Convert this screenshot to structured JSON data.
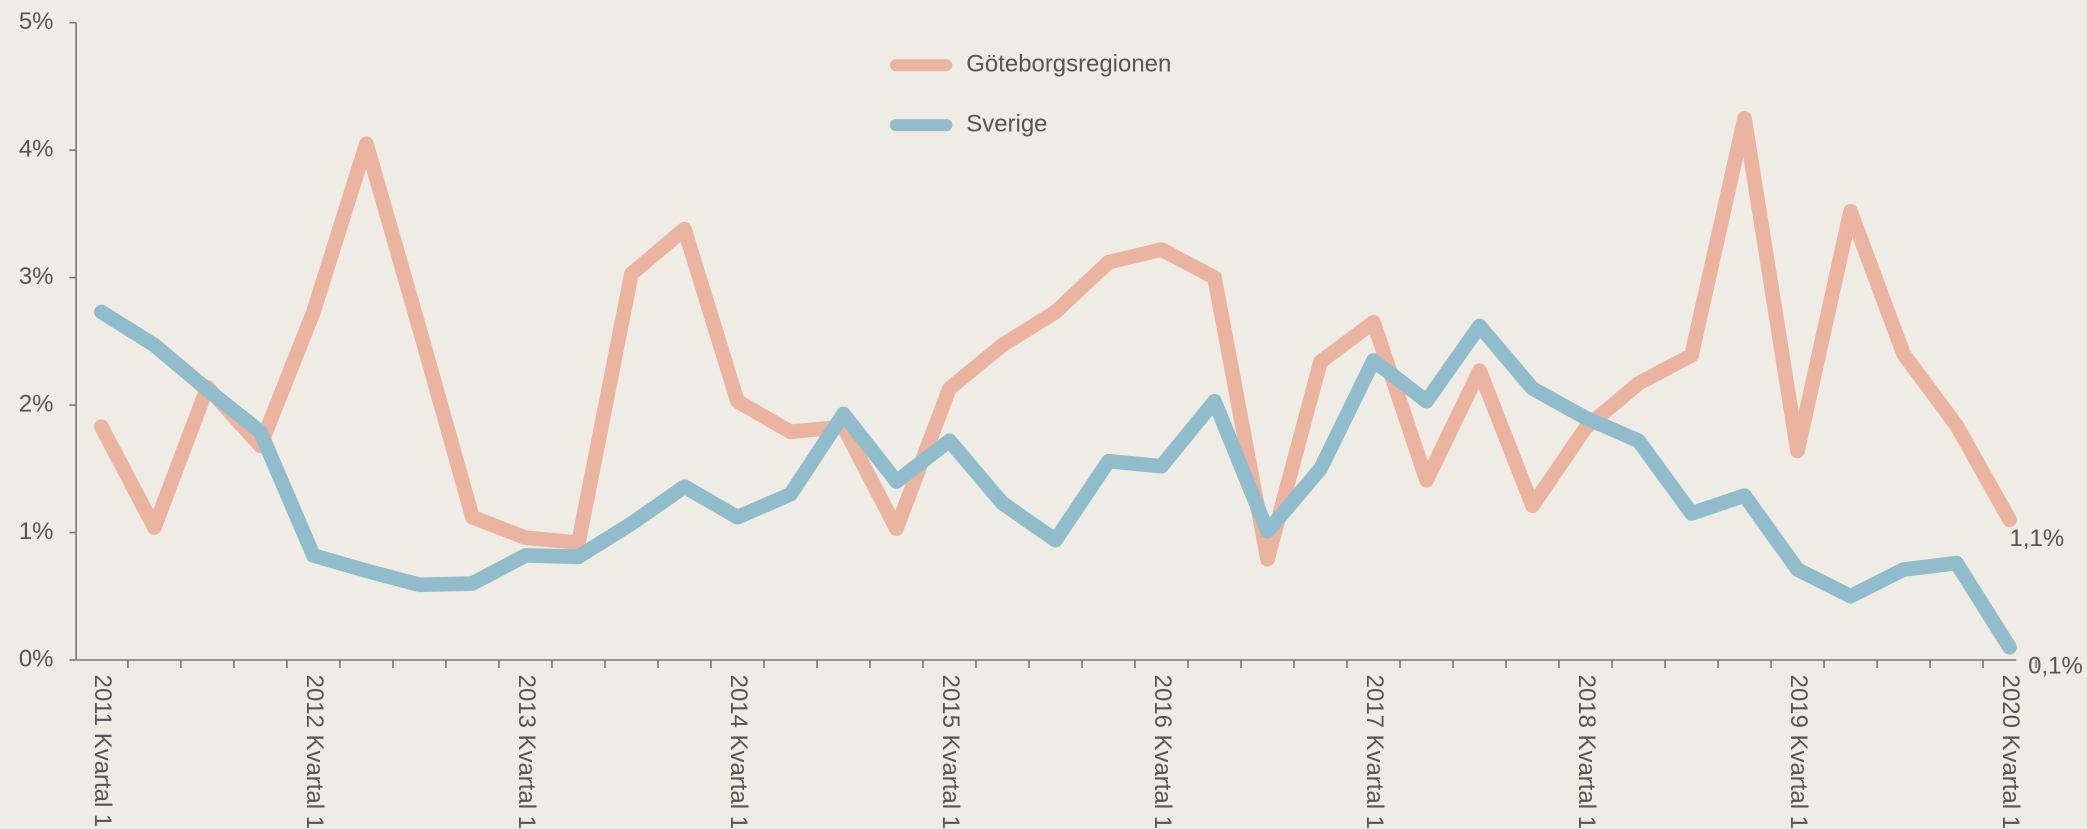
{
  "chart_data": {
    "type": "line",
    "categories": [
      "2011 Kvartal 1",
      null,
      null,
      null,
      "2012 Kvartal 1",
      null,
      null,
      null,
      "2013 Kvartal 1",
      null,
      null,
      null,
      "2014 Kvartal 1",
      null,
      null,
      null,
      "2015 Kvartal 1",
      null,
      null,
      null,
      "2016 Kvartal 1",
      null,
      null,
      null,
      "2017 Kvartal 1",
      null,
      null,
      null,
      "2018 Kvartal 1",
      null,
      null,
      null,
      "2019 Kvartal 1",
      null,
      null,
      null,
      "2020 Kvartal 1"
    ],
    "series": [
      {
        "name": "Göteborgsregionen",
        "color": "#ebb4a1",
        "values": [
          1.83,
          1.04,
          2.14,
          1.68,
          2.73,
          4.05,
          2.6,
          1.12,
          0.96,
          0.92,
          3.03,
          3.38,
          2.03,
          1.79,
          1.83,
          1.03,
          2.13,
          2.47,
          2.73,
          3.12,
          3.22,
          3.0,
          0.79,
          2.34,
          2.65,
          1.41,
          2.27,
          1.21,
          1.82,
          2.17,
          2.39,
          4.25,
          1.64,
          3.52,
          2.4,
          1.84,
          1.1
        ],
        "value_labels": [
          null,
          null,
          null,
          null,
          null,
          null,
          null,
          null,
          null,
          null,
          null,
          null,
          null,
          null,
          null,
          null,
          null,
          null,
          null,
          null,
          null,
          null,
          null,
          null,
          null,
          null,
          null,
          null,
          null,
          null,
          null,
          null,
          null,
          null,
          null,
          null,
          "1,1%"
        ]
      },
      {
        "name": "Sverige",
        "color": "#91bccc",
        "values": [
          2.73,
          2.47,
          2.12,
          1.79,
          0.82,
          0.7,
          0.59,
          0.6,
          0.82,
          0.81,
          1.07,
          1.36,
          1.12,
          1.3,
          1.93,
          1.4,
          1.72,
          1.23,
          0.94,
          1.56,
          1.52,
          2.03,
          1.01,
          1.5,
          2.35,
          2.03,
          2.62,
          2.13,
          1.9,
          1.72,
          1.15,
          1.29,
          0.71,
          0.5,
          0.71,
          0.76,
          0.1
        ],
        "value_labels": [
          null,
          null,
          null,
          null,
          null,
          null,
          null,
          null,
          null,
          null,
          null,
          null,
          null,
          null,
          null,
          null,
          null,
          null,
          null,
          null,
          null,
          null,
          null,
          null,
          null,
          null,
          null,
          null,
          null,
          null,
          null,
          null,
          null,
          null,
          null,
          null,
          "0,1%"
        ]
      }
    ],
    "ylim": [
      0,
      5
    ],
    "yticks": [
      {
        "value": 0,
        "label": "0%"
      },
      {
        "value": 1,
        "label": "1%"
      },
      {
        "value": 2,
        "label": "2%"
      },
      {
        "value": 3,
        "label": "3%"
      },
      {
        "value": 4,
        "label": "4%"
      },
      {
        "value": 5,
        "label": "5%"
      }
    ],
    "grid": false,
    "legend": "top"
  }
}
